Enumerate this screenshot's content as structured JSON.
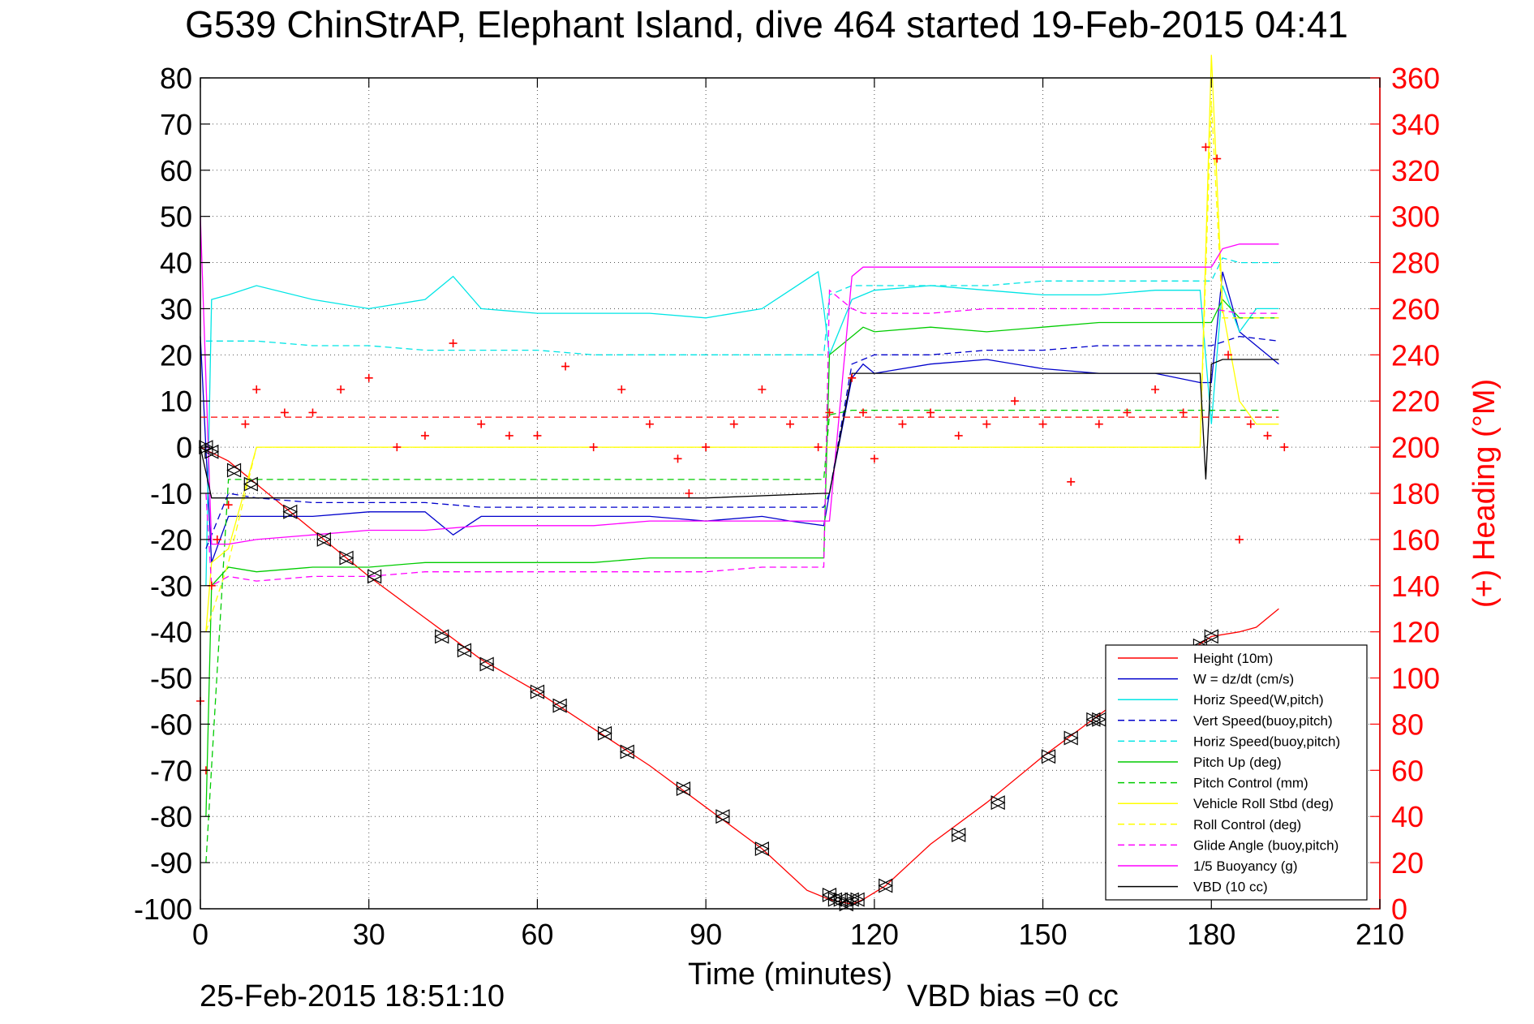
{
  "chart_data": {
    "type": "line",
    "title": "G539 ChinStrAP, Elephant Island, dive 464 started 19-Feb-2015 04:41",
    "xlabel": "Time (minutes)",
    "ylabel_right": "(+) Heading (°M)",
    "xlim": [
      0,
      210
    ],
    "ylim": [
      -100,
      80
    ],
    "ylim_right": [
      0,
      360
    ],
    "x_ticks": [
      "0",
      "30",
      "60",
      "90",
      "120",
      "150",
      "180",
      "210"
    ],
    "y_ticks": [
      "80",
      "70",
      "60",
      "50",
      "40",
      "30",
      "20",
      "10",
      "0",
      "-10",
      "-20",
      "-30",
      "-40",
      "-50",
      "-60",
      "-70",
      "-80",
      "-90",
      "-100"
    ],
    "y_ticks_right": [
      "360",
      "340",
      "320",
      "300",
      "280",
      "260",
      "240",
      "220",
      "200",
      "180",
      "160",
      "140",
      "120",
      "100",
      "80",
      "60",
      "40",
      "20",
      "0"
    ],
    "grid": true,
    "legend_position": "bottom-right",
    "footer_left": "25-Feb-2015 18:51:10",
    "footer_right": "VBD bias =0 cc",
    "colors": {
      "red": "#ff0000",
      "blue": "#0000cc",
      "cyan": "#00e5e5",
      "green": "#00cc00",
      "yellow": "#ffff00",
      "magenta": "#ff00ff",
      "black": "#000000"
    },
    "series": [
      {
        "name": "Height (10m)",
        "color": "#ff0000",
        "dash": "solid",
        "x": [
          0,
          5,
          10,
          20,
          30,
          40,
          50,
          60,
          70,
          80,
          90,
          100,
          108,
          112,
          116,
          118,
          122,
          130,
          140,
          150,
          160,
          170,
          180,
          185,
          188,
          192
        ],
        "y": [
          0,
          -3,
          -8,
          -18,
          -28,
          -37,
          -46,
          -53,
          -61,
          -69,
          -78,
          -87,
          -96,
          -98,
          -99,
          -98,
          -95,
          -86,
          -77,
          -67,
          -58,
          -49,
          -41,
          -40,
          -39,
          -35
        ]
      },
      {
        "name": "W = dz/dt (cm/s)",
        "color": "#0000cc",
        "dash": "solid",
        "x": [
          0,
          2,
          5,
          10,
          20,
          30,
          40,
          45,
          50,
          60,
          70,
          80,
          90,
          100,
          105,
          111,
          112,
          116,
          118,
          120,
          130,
          140,
          150,
          160,
          170,
          178,
          180,
          182,
          185,
          188,
          192
        ],
        "y": [
          24,
          -25,
          -15,
          -15,
          -15,
          -14,
          -14,
          -19,
          -15,
          -15,
          -15,
          -15,
          -16,
          -15,
          -16,
          -17,
          -10,
          15,
          18,
          16,
          18,
          19,
          17,
          16,
          16,
          14,
          14,
          38,
          25,
          22,
          18
        ]
      },
      {
        "name": "Horiz Speed(W,pitch)",
        "color": "#00e5e5",
        "dash": "solid",
        "x": [
          1,
          2,
          5,
          10,
          20,
          30,
          40,
          45,
          50,
          60,
          70,
          80,
          90,
          100,
          105,
          110,
          111,
          112,
          116,
          118,
          120,
          130,
          140,
          150,
          160,
          170,
          178,
          180,
          182,
          185,
          188,
          192
        ],
        "y": [
          -30,
          32,
          33,
          35,
          32,
          30,
          32,
          37,
          30,
          29,
          29,
          29,
          28,
          30,
          34,
          38,
          30,
          20,
          32,
          33,
          34,
          35,
          34,
          33,
          33,
          34,
          34,
          5,
          35,
          25,
          30,
          30
        ]
      },
      {
        "name": "Vert Speed(buoy,pitch)",
        "color": "#0000cc",
        "dash": "dashed",
        "x": [
          1,
          5,
          10,
          20,
          30,
          40,
          50,
          60,
          70,
          80,
          90,
          100,
          111,
          112,
          116,
          118,
          120,
          130,
          140,
          150,
          160,
          170,
          178,
          180,
          185,
          192
        ],
        "y": [
          -22,
          -10,
          -11,
          -12,
          -12,
          -12,
          -13,
          -13,
          -13,
          -13,
          -13,
          -13,
          -13,
          -10,
          18,
          19,
          20,
          20,
          21,
          21,
          22,
          22,
          22,
          22,
          24,
          23
        ]
      },
      {
        "name": "Horiz Speed(buoy,pitch)",
        "color": "#00e5e5",
        "dash": "dashed",
        "x": [
          1,
          5,
          10,
          20,
          30,
          40,
          50,
          60,
          70,
          80,
          90,
          100,
          111,
          112,
          116,
          118,
          120,
          130,
          140,
          150,
          160,
          170,
          178,
          180,
          182,
          185,
          192
        ],
        "y": [
          23,
          23,
          23,
          22,
          22,
          21,
          21,
          21,
          20,
          20,
          20,
          20,
          20,
          33,
          35,
          35,
          35,
          35,
          35,
          36,
          36,
          36,
          36,
          36,
          41,
          40,
          40
        ]
      },
      {
        "name": "Pitch Up (deg)",
        "color": "#00cc00",
        "dash": "solid",
        "x": [
          1,
          2,
          5,
          10,
          20,
          30,
          40,
          50,
          60,
          70,
          80,
          90,
          100,
          111,
          112,
          116,
          118,
          120,
          130,
          140,
          150,
          160,
          170,
          178,
          180,
          182,
          185,
          188,
          192
        ],
        "y": [
          -80,
          -30,
          -26,
          -27,
          -26,
          -26,
          -25,
          -25,
          -25,
          -25,
          -24,
          -24,
          -24,
          -24,
          20,
          24,
          26,
          25,
          26,
          25,
          26,
          27,
          27,
          27,
          27,
          32,
          28,
          28,
          28
        ]
      },
      {
        "name": "Pitch Control (mm)",
        "color": "#00cc00",
        "dash": "dashed",
        "x": [
          1,
          5,
          10,
          30,
          60,
          90,
          111,
          112,
          116,
          118,
          150,
          178,
          180,
          192
        ],
        "y": [
          -90,
          -7,
          -7,
          -7,
          -7,
          -7,
          -7,
          7,
          8,
          8,
          8,
          8,
          8,
          8
        ]
      },
      {
        "name": "Vehicle Roll Stbd (deg)",
        "color": "#ffff00",
        "dash": "solid",
        "x": [
          1,
          2,
          5,
          10,
          20,
          30,
          40,
          50,
          60,
          70,
          80,
          90,
          100,
          110,
          112,
          116,
          118,
          120,
          130,
          140,
          150,
          160,
          170,
          178,
          180,
          182,
          185,
          188,
          192
        ],
        "y": [
          -40,
          -25,
          -22,
          0,
          0,
          0,
          0,
          0,
          0,
          0,
          0,
          0,
          0,
          0,
          0,
          0,
          0,
          0,
          0,
          0,
          0,
          0,
          0,
          0,
          85,
          30,
          10,
          5,
          5
        ]
      },
      {
        "name": "Roll Control (deg)",
        "color": "#ffff00",
        "dash": "dashed",
        "x": [
          1,
          5,
          10,
          30,
          60,
          90,
          111,
          112,
          116,
          150,
          178,
          180,
          182,
          192
        ],
        "y": [
          -40,
          -25,
          0,
          0,
          0,
          0,
          0,
          0,
          0,
          0,
          0,
          75,
          28,
          28
        ]
      },
      {
        "name": "Glide Angle (buoy,pitch)",
        "color": "#ff00ff",
        "dash": "dashed",
        "x": [
          1,
          2,
          5,
          10,
          20,
          30,
          40,
          50,
          60,
          70,
          80,
          90,
          100,
          111,
          112,
          116,
          118,
          120,
          130,
          140,
          150,
          160,
          170,
          178,
          180,
          185,
          192
        ],
        "y": [
          -10,
          -30,
          -28,
          -29,
          -28,
          -28,
          -27,
          -27,
          -27,
          -27,
          -27,
          -27,
          -26,
          -26,
          34,
          30,
          29,
          29,
          29,
          30,
          30,
          30,
          30,
          30,
          30,
          29,
          29
        ]
      },
      {
        "name": "1/5 Buoyancy (g)",
        "color": "#ff00ff",
        "dash": "solid",
        "x": [
          0,
          2,
          5,
          10,
          20,
          30,
          40,
          50,
          60,
          70,
          80,
          90,
          100,
          111,
          112,
          116,
          118,
          130,
          150,
          170,
          178,
          180,
          182,
          185,
          192
        ],
        "y": [
          50,
          -21,
          -21,
          -20,
          -19,
          -18,
          -18,
          -17,
          -17,
          -17,
          -16,
          -16,
          -16,
          -16,
          -16,
          37,
          39,
          39,
          39,
          39,
          39,
          39,
          43,
          44,
          44
        ]
      },
      {
        "name": "VBD (10 cc)",
        "color": "#000000",
        "dash": "solid",
        "x": [
          0,
          2,
          5,
          30,
          60,
          90,
          111,
          112,
          116,
          118,
          130,
          150,
          178,
          179,
          180,
          182,
          192
        ],
        "y": [
          0,
          -11,
          -11,
          -11,
          -11,
          -11,
          -10,
          -10,
          16,
          16,
          16,
          16,
          16,
          -7,
          18,
          19,
          19
        ]
      },
      {
        "name": "Heading",
        "color": "#ff0000",
        "marker": "+",
        "axis": "right",
        "x": [
          0,
          1,
          2,
          3,
          5,
          8,
          10,
          15,
          20,
          25,
          30,
          35,
          40,
          45,
          50,
          55,
          60,
          65,
          70,
          75,
          80,
          85,
          87,
          90,
          95,
          100,
          105,
          110,
          112,
          116,
          118,
          120,
          125,
          130,
          135,
          140,
          145,
          150,
          155,
          160,
          165,
          170,
          175,
          179,
          181,
          183,
          185,
          187,
          190,
          193
        ],
        "y": [
          90,
          60,
          140,
          160,
          175,
          210,
          225,
          215,
          215,
          225,
          230,
          200,
          205,
          245,
          210,
          205,
          205,
          235,
          200,
          225,
          210,
          195,
          180,
          200,
          210,
          225,
          210,
          200,
          215,
          230,
          215,
          195,
          210,
          215,
          205,
          210,
          220,
          210,
          185,
          210,
          215,
          225,
          215,
          330,
          325,
          240,
          160,
          210,
          205,
          200
        ]
      },
      {
        "name": "Heading mean",
        "color": "#ff0000",
        "dash": "dashed",
        "axis": "right",
        "x": [
          0,
          192
        ],
        "y": [
          213,
          213
        ]
      }
    ],
    "markers_triangles": {
      "color": "#000000",
      "x": [
        1,
        2,
        6,
        9,
        16,
        22,
        26,
        31,
        43,
        47,
        51,
        60,
        64,
        72,
        76,
        86,
        93,
        100,
        112,
        113,
        114,
        115,
        116,
        117,
        122,
        135,
        142,
        151,
        155,
        159,
        160,
        178,
        180
      ],
      "y": [
        0,
        -1,
        -5,
        -8,
        -14,
        -20,
        -24,
        -28,
        -41,
        -44,
        -47,
        -53,
        -56,
        -62,
        -66,
        -74,
        -80,
        -87,
        -97,
        -98,
        -98,
        -99,
        -98,
        -98,
        -95,
        -84,
        -77,
        -67,
        -63,
        -59,
        -59,
        -43,
        -41
      ]
    }
  }
}
